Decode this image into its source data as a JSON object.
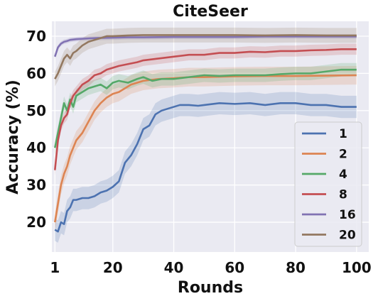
{
  "chart_data": {
    "type": "line",
    "title": "CiteSeer",
    "xlabel": "Rounds",
    "ylabel": "Accuracy (%)",
    "xlim": [
      0,
      104
    ],
    "ylim": [
      12,
      74
    ],
    "xticks": [
      1,
      20,
      40,
      60,
      80,
      100
    ],
    "xtick_labels": [
      "1",
      "20",
      "40",
      "60",
      "80",
      "100"
    ],
    "yticks": [
      20,
      30,
      40,
      50,
      60,
      70
    ],
    "ytick_labels": [
      "20",
      "30",
      "40",
      "50",
      "60",
      "70"
    ],
    "grid": true,
    "legend_position": "bottom-right",
    "series": [
      {
        "name": "1",
        "color": "#4c72b0",
        "band": 3.0,
        "x": [
          1,
          2,
          3,
          4,
          5,
          6,
          7,
          8,
          10,
          12,
          14,
          16,
          18,
          20,
          22,
          24,
          26,
          28,
          30,
          32,
          34,
          36,
          38,
          40,
          42,
          45,
          48,
          50,
          55,
          60,
          65,
          70,
          75,
          80,
          85,
          90,
          95,
          100
        ],
        "y": [
          18,
          17.5,
          20,
          19.5,
          23,
          24,
          26,
          26,
          26.5,
          26.5,
          27,
          28,
          28.5,
          29.5,
          31,
          36,
          38,
          41,
          45,
          46,
          49,
          50,
          50.5,
          51,
          51.5,
          51.5,
          51.3,
          51.5,
          52,
          51.8,
          52,
          51.5,
          52,
          52,
          51.5,
          51.5,
          51,
          51
        ]
      },
      {
        "name": "2",
        "color": "#dd8452",
        "band": 2.5,
        "x": [
          1,
          2,
          3,
          4,
          5,
          6,
          7,
          8,
          10,
          12,
          14,
          16,
          18,
          20,
          22,
          24,
          26,
          28,
          30,
          35,
          40,
          45,
          50,
          60,
          70,
          80,
          90,
          100
        ],
        "y": [
          20,
          25,
          30,
          33,
          35,
          38,
          40,
          42,
          44,
          47,
          50,
          52,
          53.5,
          54.5,
          55,
          56,
          57,
          57.5,
          58,
          58.5,
          58.7,
          59,
          59,
          59.2,
          59.3,
          59.3,
          59.4,
          59.5
        ]
      },
      {
        "name": "4",
        "color": "#55a868",
        "band": 1.8,
        "x": [
          1,
          2,
          3,
          4,
          5,
          6,
          7,
          8,
          10,
          12,
          14,
          16,
          18,
          20,
          22,
          25,
          28,
          30,
          33,
          36,
          40,
          45,
          50,
          55,
          60,
          65,
          70,
          75,
          80,
          85,
          90,
          95,
          100
        ],
        "y": [
          40,
          44,
          48,
          52,
          50,
          53,
          51,
          54,
          55,
          56,
          56.5,
          57,
          56,
          57.5,
          58,
          57.5,
          58.5,
          59,
          58,
          58.5,
          58.5,
          59,
          59.5,
          59.3,
          59.5,
          59.5,
          59.5,
          59.8,
          60,
          60,
          60.5,
          61,
          61
        ]
      },
      {
        "name": "8",
        "color": "#c44e52",
        "band": 1.5,
        "x": [
          1,
          2,
          3,
          4,
          5,
          6,
          7,
          8,
          10,
          12,
          14,
          16,
          18,
          20,
          22,
          25,
          28,
          30,
          35,
          40,
          45,
          50,
          55,
          60,
          65,
          70,
          75,
          80,
          85,
          90,
          95,
          100
        ],
        "y": [
          34,
          42,
          46,
          48,
          49,
          52,
          54,
          55,
          57,
          58,
          59.5,
          60,
          61,
          61.5,
          62,
          62.5,
          63,
          63.5,
          64,
          64.5,
          65,
          65,
          65.5,
          65.5,
          65.8,
          65.7,
          66,
          66,
          66.2,
          66.3,
          66.5,
          66.5
        ]
      },
      {
        "name": "16",
        "color": "#8172b3",
        "band": 0.6,
        "x": [
          1,
          2,
          3,
          4,
          5,
          6,
          8,
          10,
          12,
          15,
          20,
          25,
          30,
          40,
          50,
          60,
          70,
          80,
          90,
          100
        ],
        "y": [
          64.5,
          67,
          68,
          68.5,
          68.7,
          69,
          69.2,
          69.3,
          69.4,
          69.5,
          69.6,
          69.7,
          69.7,
          69.8,
          69.8,
          69.8,
          69.9,
          69.9,
          69.9,
          69.9
        ]
      },
      {
        "name": "20",
        "color": "#937860",
        "band": 2.0,
        "x": [
          1,
          2,
          3,
          4,
          5,
          6,
          7,
          8,
          10,
          12,
          14,
          16,
          18,
          20,
          25,
          30,
          40,
          50,
          60,
          70,
          80,
          90,
          100
        ],
        "y": [
          58.5,
          60,
          62,
          64,
          65,
          64,
          65.5,
          66,
          67.5,
          68.5,
          69,
          69.5,
          70,
          70,
          70.2,
          70.3,
          70.3,
          70.3,
          70.3,
          70.2,
          70.3,
          70.2,
          70.2
        ]
      }
    ]
  }
}
